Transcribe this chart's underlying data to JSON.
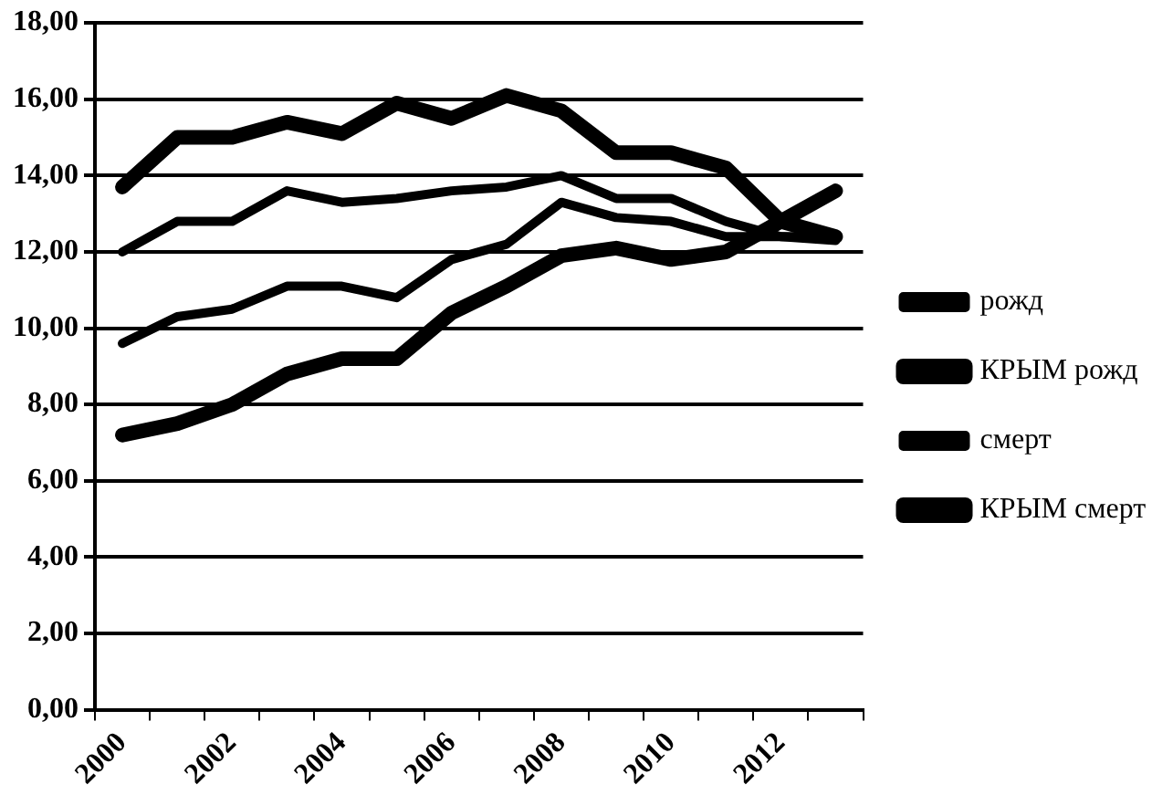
{
  "chart_data": {
    "type": "line",
    "categories": [
      "2000",
      null,
      "2002",
      null,
      "2004",
      null,
      "2006",
      null,
      "2008",
      null,
      "2010",
      null,
      "2012",
      null
    ],
    "series": [
      {
        "name": "рожд",
        "color": "#000000",
        "values": [
          9.6,
          10.3,
          10.5,
          11.1,
          11.1,
          10.8,
          11.8,
          12.2,
          13.3,
          12.9,
          12.8,
          12.4,
          12.4,
          12.4
        ]
      },
      {
        "name": "КРЫМ рожд",
        "color": "#000000",
        "values": [
          7.2,
          7.5,
          8.0,
          8.8,
          9.2,
          9.2,
          10.4,
          11.1,
          11.9,
          12.1,
          11.8,
          12.0,
          12.8,
          13.6
        ]
      },
      {
        "name": "смерт",
        "color": "#000000",
        "values": [
          12.0,
          12.8,
          12.8,
          13.6,
          13.3,
          13.4,
          13.6,
          13.7,
          14.0,
          13.4,
          13.4,
          12.8,
          12.4,
          12.3
        ]
      },
      {
        "name": "КРЫМ смерт",
        "color": "#000000",
        "values": [
          13.7,
          15.0,
          15.0,
          15.4,
          15.1,
          15.9,
          15.5,
          16.1,
          15.7,
          14.6,
          14.6,
          14.2,
          12.8,
          12.4
        ]
      }
    ],
    "ylim": [
      0,
      18
    ],
    "yticks": [
      {
        "value": 0,
        "label": "0,00"
      },
      {
        "value": 2,
        "label": "2,00"
      },
      {
        "value": 4,
        "label": "4,00"
      },
      {
        "value": 6,
        "label": "6,00"
      },
      {
        "value": 8,
        "label": "8,00"
      },
      {
        "value": 10,
        "label": "10,00"
      },
      {
        "value": 12,
        "label": "12,00"
      },
      {
        "value": 14,
        "label": "14,00"
      },
      {
        "value": 16,
        "label": "16,00"
      },
      {
        "value": 18,
        "label": "18,00"
      }
    ],
    "grid": "y",
    "legend": "right",
    "marker": "none",
    "line_style": "solid"
  }
}
